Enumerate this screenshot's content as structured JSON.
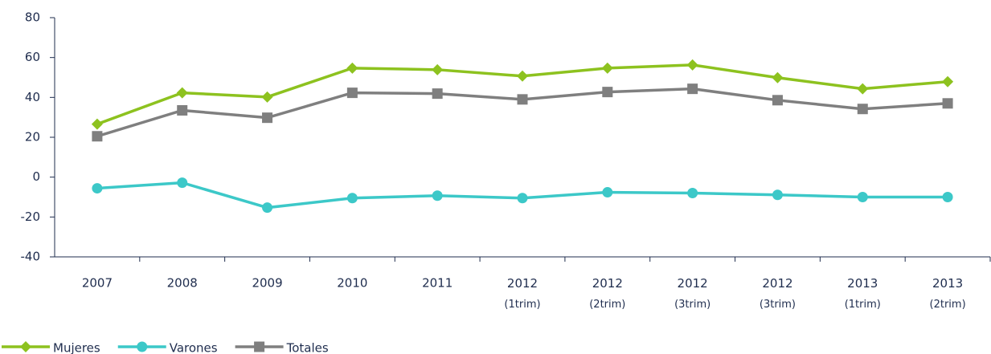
{
  "chart_data": {
    "type": "line",
    "categories": [
      "2007",
      "2008",
      "2009",
      "2010",
      "2011",
      "2012 (1trim)",
      "2012 (2trim)",
      "2012 (3trim)",
      "2012 (3trim)",
      "2013 (1trim)",
      "2013 (2trim)"
    ],
    "series": [
      {
        "name": "Mujeres",
        "color": "#8dc21f",
        "marker": "diamond",
        "values": [
          26.6,
          42.3,
          40.2,
          54.7,
          53.9,
          50.7,
          54.7,
          56.3,
          49.9,
          44.3,
          47.9
        ]
      },
      {
        "name": "Varones",
        "color": "#3cc8c8",
        "marker": "circle",
        "values": [
          -5.6,
          -2.8,
          -15.3,
          -10.5,
          -9.3,
          -10.5,
          -7.6,
          -8.0,
          -8.9,
          -10.0,
          -10.0
        ]
      },
      {
        "name": "Totales",
        "color": "#7f7f7f",
        "marker": "square",
        "values": [
          20.5,
          33.5,
          29.8,
          42.3,
          41.9,
          39.0,
          42.7,
          44.3,
          38.6,
          34.2,
          37.0
        ]
      }
    ],
    "ylim": [
      -40,
      80
    ],
    "yticks": [
      -40,
      -20,
      0,
      20,
      40,
      60,
      80
    ],
    "grid": false,
    "legend": "bottom-left"
  }
}
